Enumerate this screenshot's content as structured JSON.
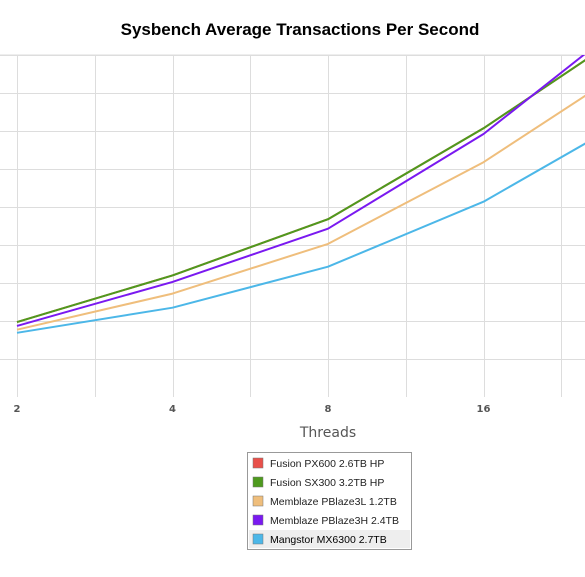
{
  "chart_data": {
    "type": "line",
    "title": "Sysbench Average Transactions Per Second",
    "xlabel": "Threads",
    "ylabel": "",
    "x_scale": "log2",
    "x": [
      2,
      4,
      8,
      16,
      32
    ],
    "x_ticks": [
      "2",
      "4",
      "8",
      "16"
    ],
    "xlim": [
      2,
      24
    ],
    "ylim": [
      0,
      9
    ],
    "y_gridlines": [
      1,
      2,
      3,
      4,
      5,
      6,
      7,
      8,
      9
    ],
    "x_gridlines": [
      2,
      2.83,
      4,
      5.66,
      8,
      11.31,
      16,
      22.63
    ],
    "grid": true,
    "legend_position": "bottom-center",
    "series": [
      {
        "name": "Fusion PX600 2.6TB HP",
        "color": "#e8504a",
        "values": [
          1.97,
          3.2,
          4.68,
          7.07,
          9.81
        ]
      },
      {
        "name": "Fusion SX300 3.2TB HP",
        "color": "#4e9a1e",
        "values": [
          1.97,
          3.2,
          4.68,
          7.07,
          9.81
        ]
      },
      {
        "name": "Memblaze PBlaze3L 1.2TB",
        "color": "#efbe7c",
        "values": [
          1.77,
          2.72,
          4.03,
          6.18,
          8.85
        ]
      },
      {
        "name": "Memblaze PBlaze3H 2.4TB",
        "color": "#7a19f0",
        "values": [
          1.87,
          3.03,
          4.43,
          6.92,
          10.15
        ]
      },
      {
        "name": "Mangstor MX6300 2.7TB",
        "color": "#4cb7e8",
        "values": [
          1.69,
          2.35,
          3.43,
          5.14,
          7.48
        ]
      }
    ],
    "legend_selected": "Mangstor MX6300 2.7TB"
  }
}
